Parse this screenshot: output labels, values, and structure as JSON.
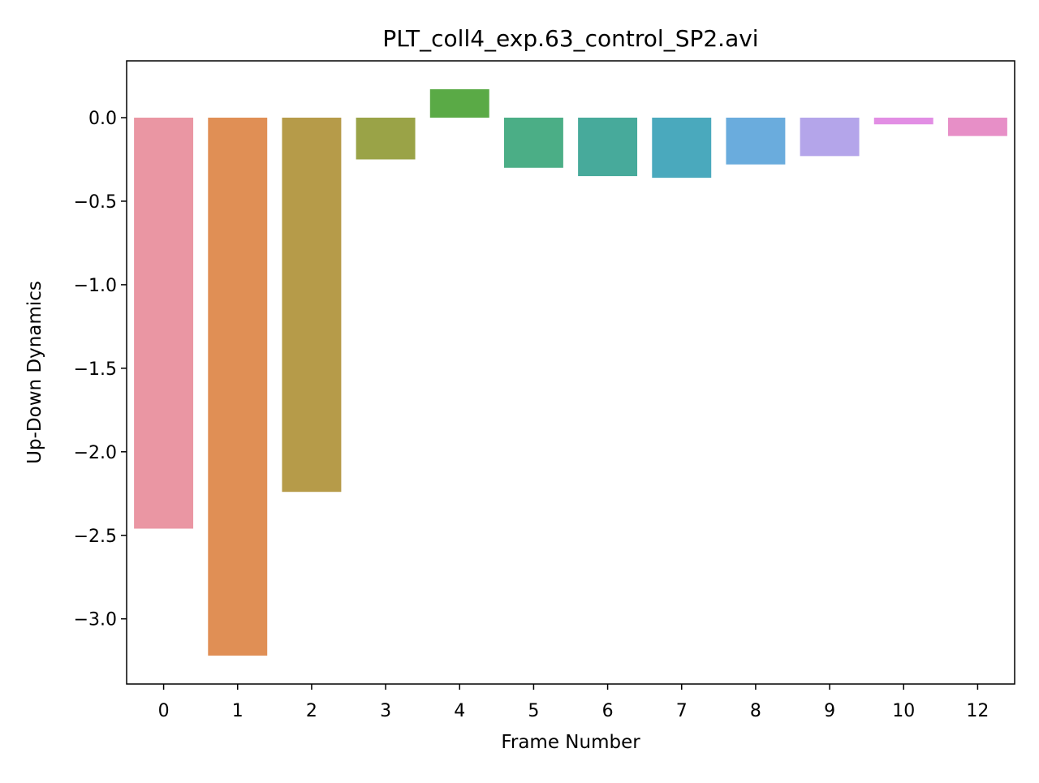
{
  "chart_data": {
    "type": "bar",
    "title": "PLT_coll4_exp.63_control_SP2.avi",
    "xlabel": "Frame Number",
    "ylabel": "Up-Down Dynamics",
    "categories": [
      "0",
      "1",
      "2",
      "3",
      "4",
      "5",
      "6",
      "7",
      "8",
      "9",
      "10",
      "12"
    ],
    "values": [
      -2.46,
      -3.22,
      -2.24,
      -0.25,
      0.17,
      -0.3,
      -0.35,
      -0.36,
      -0.28,
      -0.23,
      -0.04,
      -0.11
    ],
    "colors": [
      "#ea96a3",
      "#e08f55",
      "#b69b49",
      "#9aa347",
      "#5aaa46",
      "#4bae86",
      "#47aa9b",
      "#4aa9bd",
      "#6aacdd",
      "#b4a5ea",
      "#e28ee4",
      "#e78fc7"
    ],
    "ylim": [
      -3.39,
      0.34
    ],
    "yticks": [
      0.0,
      -0.5,
      -1.0,
      -1.5,
      -2.0,
      -2.5,
      -3.0
    ],
    "ytick_labels": [
      "0.0",
      "−0.5",
      "−1.0",
      "−1.5",
      "−2.0",
      "−2.5",
      "−3.0"
    ],
    "grid": false,
    "legend": "none"
  }
}
